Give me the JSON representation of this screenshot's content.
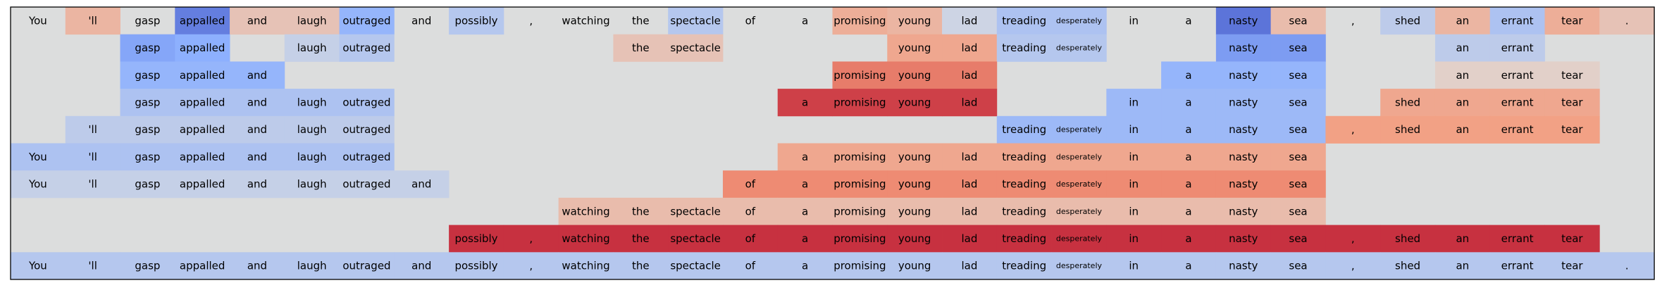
{
  "chart_data": {
    "type": "heatmap",
    "title": "",
    "xlabel": "",
    "ylabel": "",
    "grid": false,
    "legend": "none",
    "colormap": "coolwarm",
    "value_range": [
      -1,
      1
    ],
    "background_color": "#dcdddd",
    "tokens": [
      "You",
      "'ll",
      "gasp",
      "appalled",
      "and",
      "laugh",
      "outraged",
      "and",
      "possibly",
      ",",
      "watching",
      "the",
      "spectacle",
      "of",
      "a",
      "promising",
      "young",
      "lad",
      "treading",
      "desperately",
      "in",
      "a",
      "nasty",
      "sea",
      ",",
      "shed",
      "an",
      "errant",
      "tear",
      "."
    ],
    "rows": [
      {
        "shown": [
          1,
          1,
          1,
          1,
          1,
          1,
          1,
          1,
          1,
          1,
          1,
          1,
          1,
          1,
          1,
          1,
          1,
          1,
          1,
          1,
          1,
          1,
          1,
          1,
          1,
          1,
          1,
          1,
          1,
          1
        ],
        "values": [
          0,
          0.3,
          0,
          -0.75,
          0.2,
          0.2,
          -0.45,
          0,
          -0.25,
          0,
          0,
          0,
          -0.25,
          0,
          0,
          0.35,
          0.3,
          -0.1,
          -0.3,
          -0.3,
          0,
          0,
          -0.8,
          0.25,
          0,
          -0.2,
          0.3,
          -0.3,
          0.35,
          0.2
        ]
      },
      {
        "shown": [
          0,
          0,
          1,
          1,
          0,
          1,
          1,
          0,
          0,
          0,
          0,
          1,
          1,
          0,
          0,
          0,
          1,
          1,
          1,
          1,
          0,
          0,
          1,
          1,
          0,
          0,
          1,
          1,
          0,
          0
        ],
        "values": [
          0,
          0,
          -0.55,
          -0.5,
          0,
          -0.15,
          -0.25,
          0,
          0,
          0,
          0,
          0.2,
          0.2,
          0,
          0,
          0,
          0.4,
          0.4,
          -0.25,
          -0.25,
          0,
          0,
          -0.6,
          -0.6,
          0,
          0,
          -0.2,
          -0.2,
          0,
          0
        ]
      },
      {
        "shown": [
          0,
          0,
          1,
          1,
          1,
          0,
          0,
          0,
          0,
          0,
          0,
          0,
          0,
          0,
          0,
          1,
          1,
          1,
          0,
          0,
          0,
          1,
          1,
          1,
          0,
          0,
          1,
          1,
          1,
          0
        ],
        "values": [
          0,
          0,
          -0.45,
          -0.45,
          -0.45,
          0,
          0,
          0,
          0,
          0,
          0,
          0,
          0,
          0,
          0,
          0.6,
          0.6,
          0.6,
          0,
          0,
          0,
          -0.45,
          -0.45,
          -0.45,
          0,
          0,
          0.1,
          0.1,
          0.1,
          0
        ]
      },
      {
        "shown": [
          0,
          0,
          1,
          1,
          1,
          1,
          1,
          0,
          0,
          0,
          0,
          0,
          0,
          0,
          1,
          1,
          1,
          1,
          0,
          0,
          1,
          1,
          1,
          1,
          0,
          1,
          1,
          1,
          1,
          0
        ],
        "values": [
          0,
          0,
          -0.3,
          -0.3,
          -0.3,
          -0.3,
          -0.3,
          0,
          0,
          0,
          0,
          0,
          0,
          0,
          0.8,
          0.8,
          0.8,
          0.8,
          0,
          0,
          -0.4,
          -0.4,
          -0.4,
          -0.4,
          0,
          0.4,
          0.4,
          0.4,
          0.4,
          0
        ]
      },
      {
        "shown": [
          0,
          1,
          1,
          1,
          1,
          1,
          1,
          0,
          0,
          0,
          0,
          0,
          0,
          0,
          0,
          0,
          0,
          0,
          1,
          1,
          1,
          1,
          1,
          1,
          1,
          1,
          1,
          1,
          1,
          0
        ],
        "values": [
          0,
          -0.2,
          -0.2,
          -0.2,
          -0.2,
          -0.2,
          -0.2,
          0,
          0,
          0,
          0,
          0,
          0,
          0,
          0,
          0,
          0,
          0,
          -0.4,
          -0.4,
          -0.4,
          -0.4,
          -0.4,
          -0.4,
          0.45,
          0.45,
          0.45,
          0.45,
          0.45,
          0
        ]
      },
      {
        "shown": [
          1,
          1,
          1,
          1,
          1,
          1,
          1,
          0,
          0,
          0,
          0,
          0,
          0,
          0,
          1,
          1,
          1,
          1,
          1,
          1,
          1,
          1,
          1,
          1,
          0,
          0,
          0,
          0,
          0,
          0
        ],
        "values": [
          -0.3,
          -0.3,
          -0.3,
          -0.3,
          -0.3,
          -0.3,
          -0.3,
          0,
          0,
          0,
          0,
          0,
          0,
          0,
          0.4,
          0.4,
          0.4,
          0.4,
          0.4,
          0.4,
          0.4,
          0.4,
          0.4,
          0.4,
          0,
          0,
          0,
          0,
          0,
          0
        ]
      },
      {
        "shown": [
          1,
          1,
          1,
          1,
          1,
          1,
          1,
          1,
          0,
          0,
          0,
          0,
          0,
          1,
          1,
          1,
          1,
          1,
          1,
          1,
          1,
          1,
          1,
          1,
          0,
          0,
          0,
          0,
          0,
          0
        ],
        "values": [
          -0.15,
          -0.15,
          -0.15,
          -0.15,
          -0.15,
          -0.15,
          -0.15,
          -0.15,
          0,
          0,
          0,
          0,
          0,
          0.55,
          0.55,
          0.55,
          0.55,
          0.55,
          0.55,
          0.55,
          0.55,
          0.55,
          0.55,
          0.55,
          0,
          0,
          0,
          0,
          0,
          0
        ]
      },
      {
        "shown": [
          0,
          0,
          0,
          0,
          0,
          0,
          0,
          0,
          0,
          0,
          1,
          1,
          1,
          1,
          1,
          1,
          1,
          1,
          1,
          1,
          1,
          1,
          1,
          1,
          0,
          0,
          0,
          0,
          0,
          0
        ],
        "values": [
          0,
          0,
          0,
          0,
          0,
          0,
          0,
          0,
          0,
          0,
          0.25,
          0.25,
          0.25,
          0.25,
          0.25,
          0.25,
          0.25,
          0.25,
          0.25,
          0.25,
          0.25,
          0.25,
          0.25,
          0.25,
          0,
          0,
          0,
          0,
          0,
          0
        ]
      },
      {
        "shown": [
          0,
          0,
          0,
          0,
          0,
          0,
          0,
          0,
          1,
          1,
          1,
          1,
          1,
          1,
          1,
          1,
          1,
          1,
          1,
          1,
          1,
          1,
          1,
          1,
          1,
          1,
          1,
          1,
          1,
          0
        ],
        "values": [
          0,
          0,
          0,
          0,
          0,
          0,
          0,
          0,
          0.85,
          0.85,
          0.85,
          0.85,
          0.85,
          0.85,
          0.85,
          0.85,
          0.85,
          0.85,
          0.85,
          0.85,
          0.85,
          0.85,
          0.85,
          0.85,
          0.85,
          0.85,
          0.85,
          0.85,
          0.85,
          0
        ]
      },
      {
        "shown": [
          1,
          1,
          1,
          1,
          1,
          1,
          1,
          1,
          1,
          1,
          1,
          1,
          1,
          1,
          1,
          1,
          1,
          1,
          1,
          1,
          1,
          1,
          1,
          1,
          1,
          1,
          1,
          1,
          1,
          1
        ],
        "values": [
          -0.25,
          -0.25,
          -0.25,
          -0.25,
          -0.25,
          -0.25,
          -0.25,
          -0.25,
          -0.25,
          -0.25,
          -0.25,
          -0.25,
          -0.25,
          -0.25,
          -0.25,
          -0.25,
          -0.25,
          -0.25,
          -0.25,
          -0.25,
          -0.25,
          -0.25,
          -0.25,
          -0.25,
          -0.25,
          -0.25,
          -0.25,
          -0.25,
          -0.25,
          -0.25
        ]
      }
    ]
  }
}
